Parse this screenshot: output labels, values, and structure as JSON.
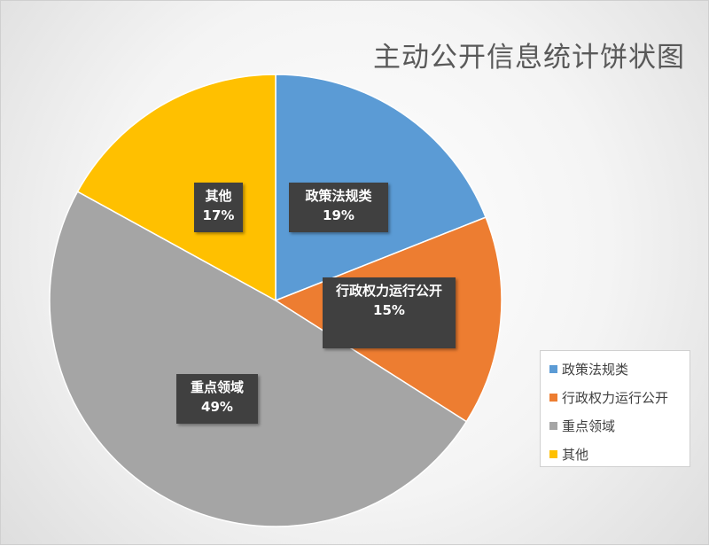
{
  "chart_data": {
    "type": "pie",
    "title": "主动公开信息统计饼状图",
    "slices": [
      {
        "name": "政策法规类",
        "value": 19,
        "label": "19%",
        "color": "#5b9bd5"
      },
      {
        "name": "行政权力运行公开",
        "value": 15,
        "label": "15%",
        "color": "#ed7d31"
      },
      {
        "name": "重点领域",
        "value": 49,
        "label": "49%",
        "color": "#a5a5a5"
      },
      {
        "name": "其他",
        "value": 17,
        "label": "17%",
        "color": "#ffc000"
      }
    ],
    "legend_position": "right"
  }
}
